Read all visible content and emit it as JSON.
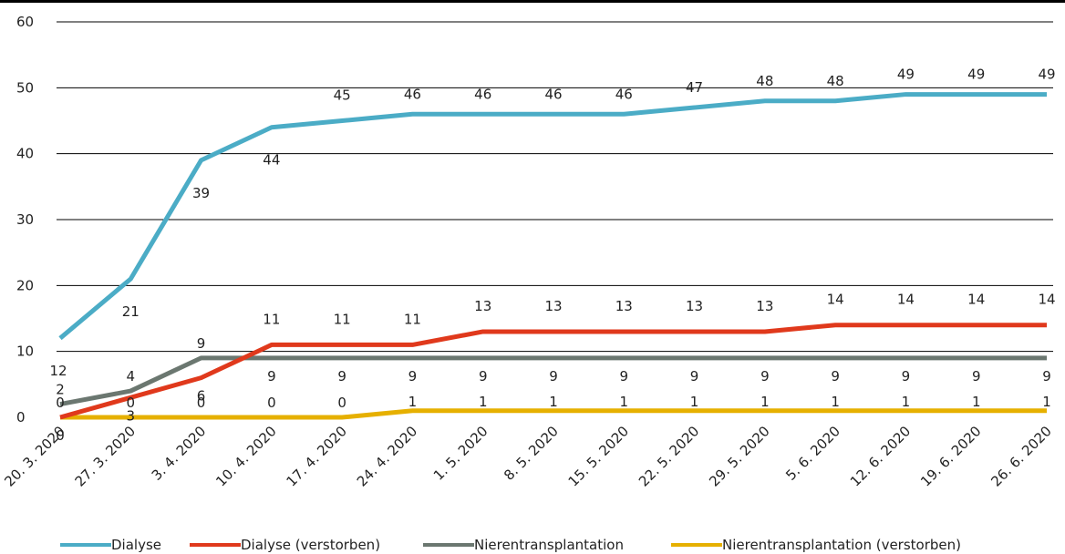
{
  "chart_data": {
    "type": "line",
    "title": "",
    "xlabel": "",
    "ylabel": "",
    "ylim": [
      0,
      60
    ],
    "yticks": [
      "0",
      "10",
      "20",
      "30",
      "40",
      "50",
      "60"
    ],
    "grid": true,
    "legend_position": "bottom",
    "categories": [
      "20. 3. 2020",
      "27. 3. 2020",
      "3. 4. 2020",
      "10. 4. 2020",
      "17. 4. 2020",
      "24. 4. 2020",
      "1. 5. 2020",
      "8. 5. 2020",
      "15. 5. 2020",
      "22. 5. 2020",
      "29. 5. 2020",
      "5. 6. 2020",
      "12. 6. 2020",
      "19. 6. 2020",
      "26. 6. 2020"
    ],
    "series": [
      {
        "name": "Dialyse",
        "color": "#4BACC6",
        "values": [
          12,
          21,
          39,
          44,
          45,
          46,
          46,
          46,
          46,
          47,
          48,
          48,
          49,
          49,
          49
        ],
        "labels": [
          "12",
          "21",
          "39",
          "44",
          "45",
          "46",
          "46",
          "46",
          "46",
          "47",
          "48",
          "48",
          "49",
          "49",
          "49"
        ]
      },
      {
        "name": "Dialyse (verstorben)",
        "color": "#E0391C",
        "values": [
          0,
          3,
          6,
          11,
          11,
          11,
          13,
          13,
          13,
          13,
          13,
          14,
          14,
          14,
          14
        ],
        "labels": [
          "0",
          "3",
          "6",
          "11",
          "11",
          "11",
          "13",
          "13",
          "13",
          "13",
          "13",
          "14",
          "14",
          "14",
          "14"
        ]
      },
      {
        "name": "Nierentransplantation",
        "color": "#6B7770",
        "values": [
          2,
          4,
          9,
          9,
          9,
          9,
          9,
          9,
          9,
          9,
          9,
          9,
          9,
          9,
          9
        ],
        "labels": [
          "2",
          "4",
          "9",
          "9",
          "9",
          "9",
          "9",
          "9",
          "9",
          "9",
          "9",
          "9",
          "9",
          "9",
          "9"
        ]
      },
      {
        "name": "Nierentransplantation (verstorben)",
        "color": "#E6B000",
        "values": [
          0,
          0,
          0,
          0,
          0,
          1,
          1,
          1,
          1,
          1,
          1,
          1,
          1,
          1,
          1
        ],
        "labels": [
          "0",
          "0",
          "0",
          "0",
          "0",
          "1",
          "1",
          "1",
          "1",
          "1",
          "1",
          "1",
          "1",
          "1",
          "1"
        ]
      }
    ]
  }
}
